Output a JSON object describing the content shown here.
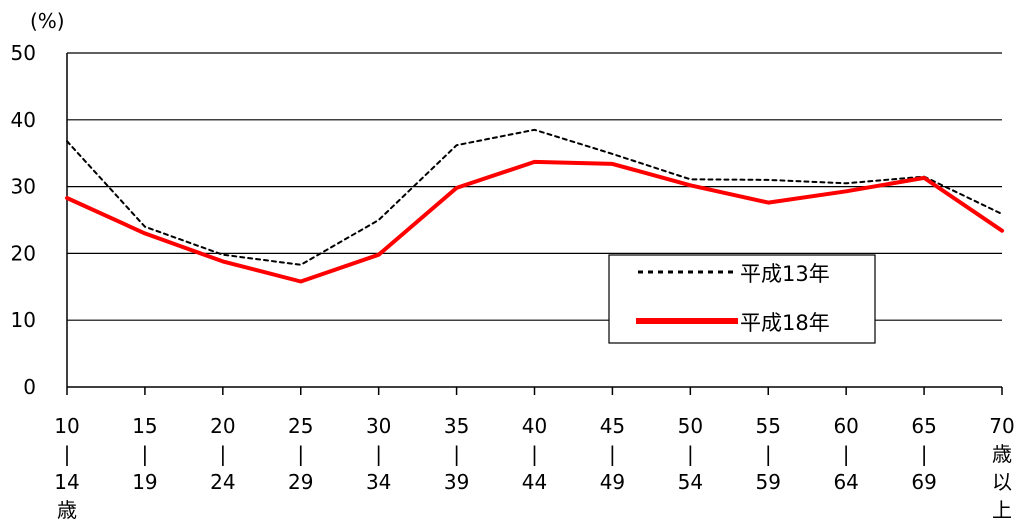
{
  "chart_data": {
    "type": "line",
    "unit_label": "(%)",
    "ylim": [
      0,
      50
    ],
    "yticks": [
      0,
      10,
      20,
      30,
      40,
      50
    ],
    "grid": true,
    "legend_position": "lower-right",
    "categories": [
      {
        "start": "10",
        "end": "14",
        "suffix": "歳"
      },
      {
        "start": "15",
        "end": "19"
      },
      {
        "start": "20",
        "end": "24"
      },
      {
        "start": "25",
        "end": "29"
      },
      {
        "start": "30",
        "end": "34"
      },
      {
        "start": "35",
        "end": "39"
      },
      {
        "start": "40",
        "end": "44"
      },
      {
        "start": "45",
        "end": "49"
      },
      {
        "start": "50",
        "end": "54"
      },
      {
        "start": "55",
        "end": "59"
      },
      {
        "start": "60",
        "end": "64"
      },
      {
        "start": "65",
        "end": "69"
      },
      {
        "start": "70",
        "stacked_suffix": [
          "歳",
          "以",
          "上"
        ]
      }
    ],
    "series": [
      {
        "name": "平成13年",
        "style": "dotted",
        "color": "#000000",
        "values": [
          36.8,
          24.0,
          19.8,
          18.3,
          25.0,
          36.2,
          38.5,
          34.9,
          31.1,
          31.0,
          30.5,
          31.5,
          25.9
        ]
      },
      {
        "name": "平成18年",
        "style": "solid",
        "color": "#ff0000",
        "values": [
          28.3,
          23.0,
          18.8,
          15.8,
          19.8,
          29.8,
          33.7,
          33.4,
          30.2,
          27.6,
          29.3,
          31.3,
          23.4
        ]
      }
    ]
  }
}
